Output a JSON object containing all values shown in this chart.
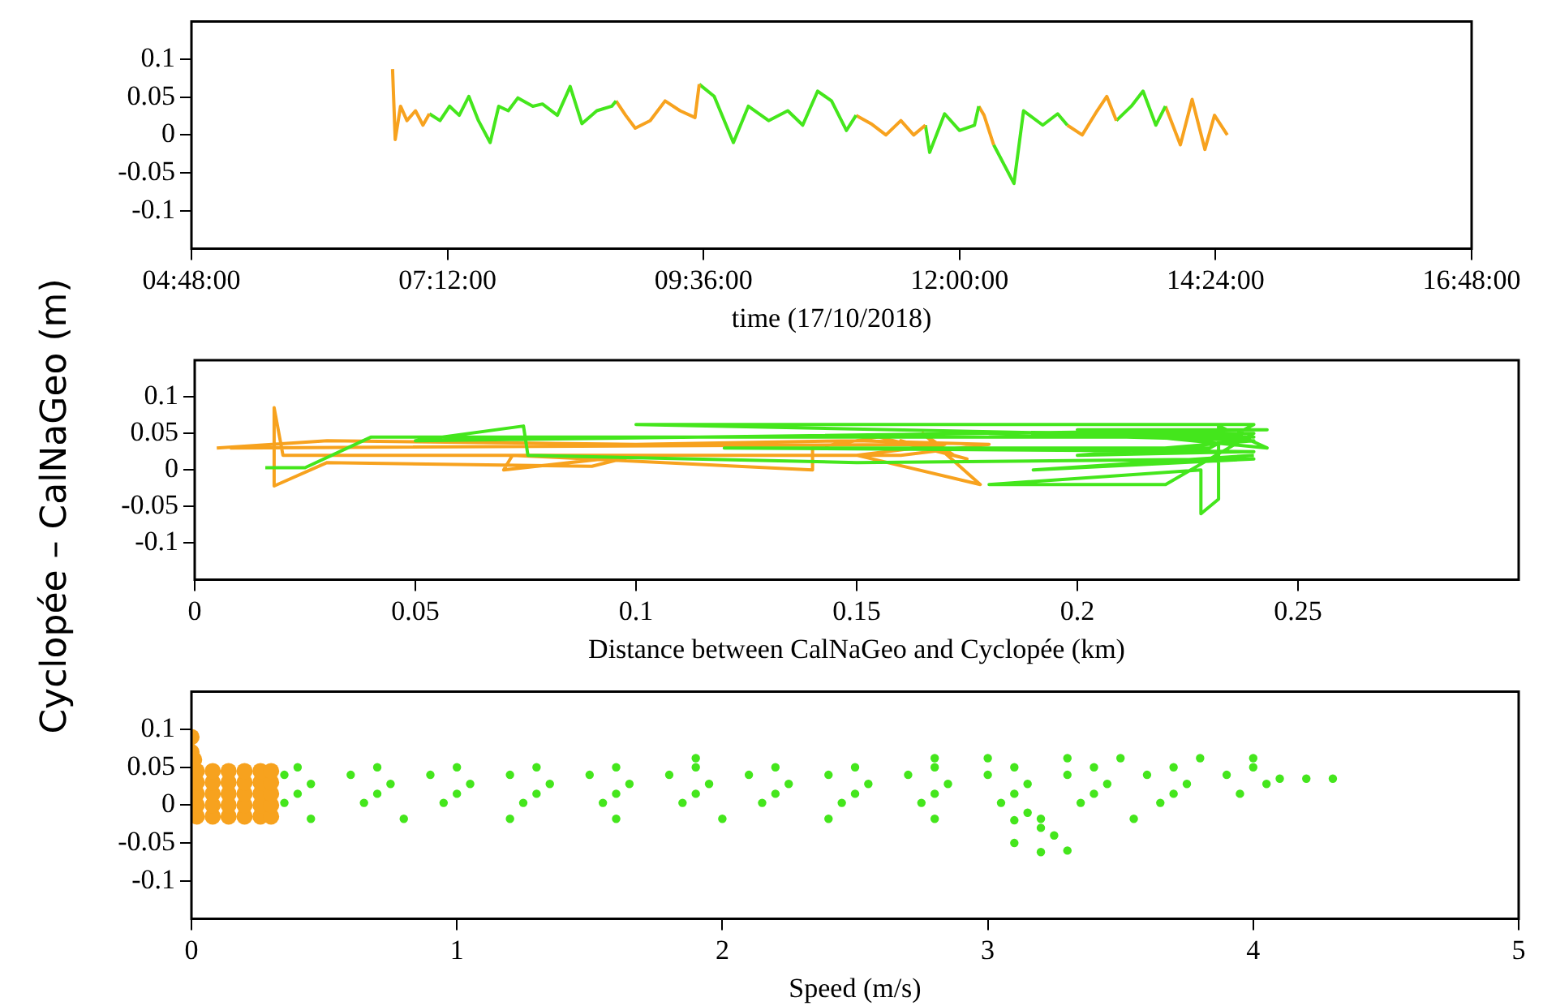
{
  "chart_data": [
    {
      "type": "line",
      "xlabel": "time (17/10/2018)",
      "xlim": [
        4.8,
        16.8
      ],
      "xticks": [
        {
          "value": 4.8,
          "label": "04:48:00"
        },
        {
          "value": 7.2,
          "label": "07:12:00"
        },
        {
          "value": 9.6,
          "label": "09:36:00"
        },
        {
          "value": 12,
          "label": "12:00:00"
        },
        {
          "value": 14.4,
          "label": "14:24:00"
        },
        {
          "value": 16.8,
          "label": "16:48:00"
        }
      ],
      "ylim": [
        -0.15,
        0.15
      ],
      "yticks": [
        -0.1,
        -0.05,
        0,
        0.05,
        0.1
      ],
      "grid": false,
      "legend": false,
      "marker": "none",
      "line_style": "solid",
      "series": [
        {
          "color": "#f7a21e",
          "x": [
            6.685,
            6.71,
            6.76,
            6.82,
            6.9,
            6.97,
            7.03
          ],
          "values": [
            0.087,
            -0.006,
            0.038,
            0.019,
            0.032,
            0.013,
            0.028
          ]
        },
        {
          "color": "#44e61c",
          "x": [
            7.03,
            7.13,
            7.22,
            7.31,
            7.4,
            7.49,
            7.6,
            7.68,
            7.77,
            7.86,
            8.0,
            8.09,
            8.23,
            8.35,
            8.46,
            8.6,
            8.74,
            8.78
          ],
          "values": [
            0.028,
            0.019,
            0.038,
            0.026,
            0.051,
            0.019,
            -0.01,
            0.038,
            0.032,
            0.049,
            0.038,
            0.041,
            0.026,
            0.064,
            0.015,
            0.032,
            0.038,
            0.045
          ]
        },
        {
          "color": "#f7a21e",
          "x": [
            8.78,
            8.87,
            8.96,
            9.1,
            9.24,
            9.38,
            9.52,
            9.56
          ],
          "values": [
            0.045,
            0.026,
            0.009,
            0.019,
            0.045,
            0.032,
            0.023,
            0.067
          ]
        },
        {
          "color": "#44e61c",
          "x": [
            9.56,
            9.7,
            9.88,
            10.02,
            10.21,
            10.39,
            10.53,
            10.67,
            10.8,
            10.94,
            11.03
          ],
          "values": [
            0.067,
            0.051,
            -0.01,
            0.038,
            0.019,
            0.032,
            0.013,
            0.058,
            0.045,
            0.006,
            0.026
          ]
        },
        {
          "color": "#f7a21e",
          "x": [
            11.03,
            11.17,
            11.31,
            11.45,
            11.57,
            11.68
          ],
          "values": [
            0.026,
            0.015,
            0,
            0.019,
            0,
            0.013
          ]
        },
        {
          "color": "#44e61c",
          "x": [
            11.68,
            11.72,
            11.86,
            12.0,
            12.14,
            12.18
          ],
          "values": [
            0.013,
            -0.023,
            0.028,
            0.006,
            0.013,
            0.038
          ]
        },
        {
          "color": "#f7a21e",
          "x": [
            12.18,
            12.23,
            12.32
          ],
          "values": [
            0.038,
            0.026,
            -0.013
          ]
        },
        {
          "color": "#44e61c",
          "x": [
            12.32,
            12.51,
            12.6,
            12.78,
            12.92,
            13.01
          ],
          "values": [
            -0.013,
            -0.064,
            0.032,
            0.013,
            0.028,
            0.013
          ]
        },
        {
          "color": "#f7a21e",
          "x": [
            13.01,
            13.15,
            13.29,
            13.38,
            13.47
          ],
          "values": [
            0.013,
            0,
            0.032,
            0.051,
            0.019
          ]
        },
        {
          "color": "#44e61c",
          "x": [
            13.47,
            13.61,
            13.72,
            13.84,
            13.93
          ],
          "values": [
            0.019,
            0.038,
            0.058,
            0.013,
            0.038
          ]
        },
        {
          "color": "#f7a21e",
          "x": [
            13.93,
            14.07,
            14.18,
            14.3,
            14.39,
            14.51
          ],
          "values": [
            0.038,
            -0.013,
            0.047,
            -0.019,
            0.026,
            0
          ]
        }
      ]
    },
    {
      "type": "line",
      "xlabel": "Distance between CalNaGeo and Cyclopée (km)",
      "ylabel": "Cyclopée – CalNaGeo (m)",
      "xlim": [
        0,
        0.3
      ],
      "xticks": [
        0,
        0.05,
        0.1,
        0.15,
        0.2,
        0.25
      ],
      "ylim": [
        -0.15,
        0.15
      ],
      "yticks": [
        -0.1,
        -0.05,
        0,
        0.05,
        0.1
      ],
      "grid": false,
      "legend": false,
      "marker": "none",
      "line_style": "solid",
      "series": [
        {
          "color": "#44e61c",
          "x": [
            0.016,
            0.025,
            0.04,
            0.24,
            0.1,
            0.24,
            0.23,
            0.12,
            0.24,
            0.2,
            0.24,
            0.18,
            0.24,
            0.22,
            0.18,
            0.228,
            0.228,
            0.232,
            0.232,
            0.243,
            0.2,
            0.243,
            0.05,
            0.0745,
            0.0755,
            0.15,
            0.24,
            0.19,
            0.24
          ],
          "values": [
            0.003,
            0.003,
            0.045,
            0.045,
            0.062,
            0.062,
            0.03,
            0.03,
            0.025,
            0.02,
            0.04,
            0.05,
            0.05,
            -0.02,
            -0.02,
            0.0,
            -0.06,
            -0.04,
            0.06,
            0.03,
            0.055,
            0.055,
            0.04,
            0.06,
            0.02,
            0.01,
            0.015,
            0.0,
            0.02
          ]
        },
        {
          "color": "#f7a21e",
          "x": [
            0.005,
            0.03,
            0.1,
            0.15,
            0.18,
            0.16,
            0.02,
            0.018,
            0.018,
            0.03,
            0.09,
            0.1,
            0.07,
            0.072,
            0.14,
            0.14,
            0.155,
            0.175,
            0.16,
            0.172,
            0.165,
            0.178,
            0.15,
            0.17,
            0.008
          ],
          "values": [
            0.03,
            0.04,
            0.035,
            0.04,
            0.035,
            0.02,
            0.02,
            0.085,
            -0.022,
            0.01,
            0.005,
            0.02,
            0.0,
            0.02,
            0.0,
            0.03,
            0.045,
            0.015,
            0.04,
            0.02,
            0.05,
            -0.02,
            0.02,
            0.035,
            0.03
          ]
        }
      ]
    },
    {
      "type": "scatter",
      "xlabel": "Speed (m/s)",
      "xlim": [
        0,
        5
      ],
      "xticks": [
        0,
        1,
        2,
        3,
        4,
        5
      ],
      "ylim": [
        -0.15,
        0.15
      ],
      "yticks": [
        -0.1,
        -0.05,
        0,
        0.05,
        0.1
      ],
      "grid": false,
      "legend": false,
      "marker": "circle",
      "series": [
        {
          "color": "#44e61c",
          "x": [
            0.4,
            0.7,
            1.0,
            1.3,
            1.6,
            1.9,
            2.2,
            2.5,
            2.8,
            3.1,
            3.4,
            3.7,
            4.0,
            0.35,
            0.6,
            0.9,
            1.2,
            1.5,
            1.8,
            2.1,
            2.4,
            2.7,
            3.0,
            3.3,
            3.6,
            3.9,
            0.45,
            0.75,
            1.05,
            1.35,
            1.65,
            1.95,
            2.25,
            2.55,
            2.85,
            3.15,
            3.45,
            3.75,
            4.05,
            0.4,
            0.7,
            1.0,
            1.3,
            1.6,
            1.9,
            2.2,
            2.5,
            2.8,
            3.1,
            3.4,
            3.7,
            3.95,
            0.35,
            0.65,
            0.95,
            1.25,
            1.55,
            1.85,
            2.15,
            2.45,
            2.75,
            3.05,
            3.35,
            3.65,
            0.45,
            0.8,
            1.2,
            1.6,
            2.0,
            2.4,
            2.8,
            3.2,
            3.55,
            1.9,
            2.8,
            3.0,
            3.3,
            3.5,
            3.8,
            4.0,
            3.1,
            3.1,
            3.2,
            3.3,
            3.25,
            3.2,
            3.15,
            4.1,
            4.2,
            4.3
          ],
          "values": [
            0.05,
            0.05,
            0.05,
            0.05,
            0.05,
            0.05,
            0.05,
            0.05,
            0.05,
            0.05,
            0.05,
            0.05,
            0.05,
            0.04,
            0.04,
            0.04,
            0.04,
            0.04,
            0.04,
            0.04,
            0.04,
            0.04,
            0.04,
            0.04,
            0.04,
            0.04,
            0.028,
            0.028,
            0.028,
            0.028,
            0.028,
            0.028,
            0.028,
            0.028,
            0.028,
            0.028,
            0.028,
            0.028,
            0.028,
            0.015,
            0.015,
            0.015,
            0.015,
            0.015,
            0.015,
            0.015,
            0.015,
            0.015,
            0.015,
            0.015,
            0.015,
            0.015,
            0.003,
            0.003,
            0.003,
            0.003,
            0.003,
            0.003,
            0.003,
            0.003,
            0.003,
            0.003,
            0.003,
            0.003,
            -0.018,
            -0.018,
            -0.018,
            -0.018,
            -0.018,
            -0.018,
            -0.018,
            -0.018,
            -0.018,
            0.062,
            0.062,
            0.062,
            0.062,
            0.062,
            0.062,
            0.062,
            -0.02,
            -0.05,
            -0.062,
            -0.06,
            -0.04,
            -0.03,
            -0.01,
            0.035,
            0.035,
            0.035
          ]
        },
        {
          "color": "#f7a21e",
          "x": [
            0.02,
            0.08,
            0.14,
            0.2,
            0.26,
            0.3,
            0.02,
            0.08,
            0.14,
            0.2,
            0.26,
            0.3,
            0.02,
            0.08,
            0.14,
            0.2,
            0.26,
            0.3,
            0.02,
            0.08,
            0.14,
            0.2,
            0.26,
            0.3,
            0.02,
            0.08,
            0.14,
            0.2,
            0.26,
            0.3,
            0,
            0,
            0.01
          ],
          "values": [
            -0.015,
            -0.015,
            -0.015,
            -0.015,
            -0.015,
            -0.015,
            0,
            0,
            0,
            0,
            0,
            0,
            0.015,
            0.015,
            0.015,
            0.015,
            0.015,
            0.015,
            0.03,
            0.03,
            0.03,
            0.03,
            0.03,
            0.03,
            0.045,
            0.045,
            0.045,
            0.045,
            0.045,
            0.045,
            0.07,
            0.09,
            0.06
          ]
        }
      ]
    }
  ]
}
